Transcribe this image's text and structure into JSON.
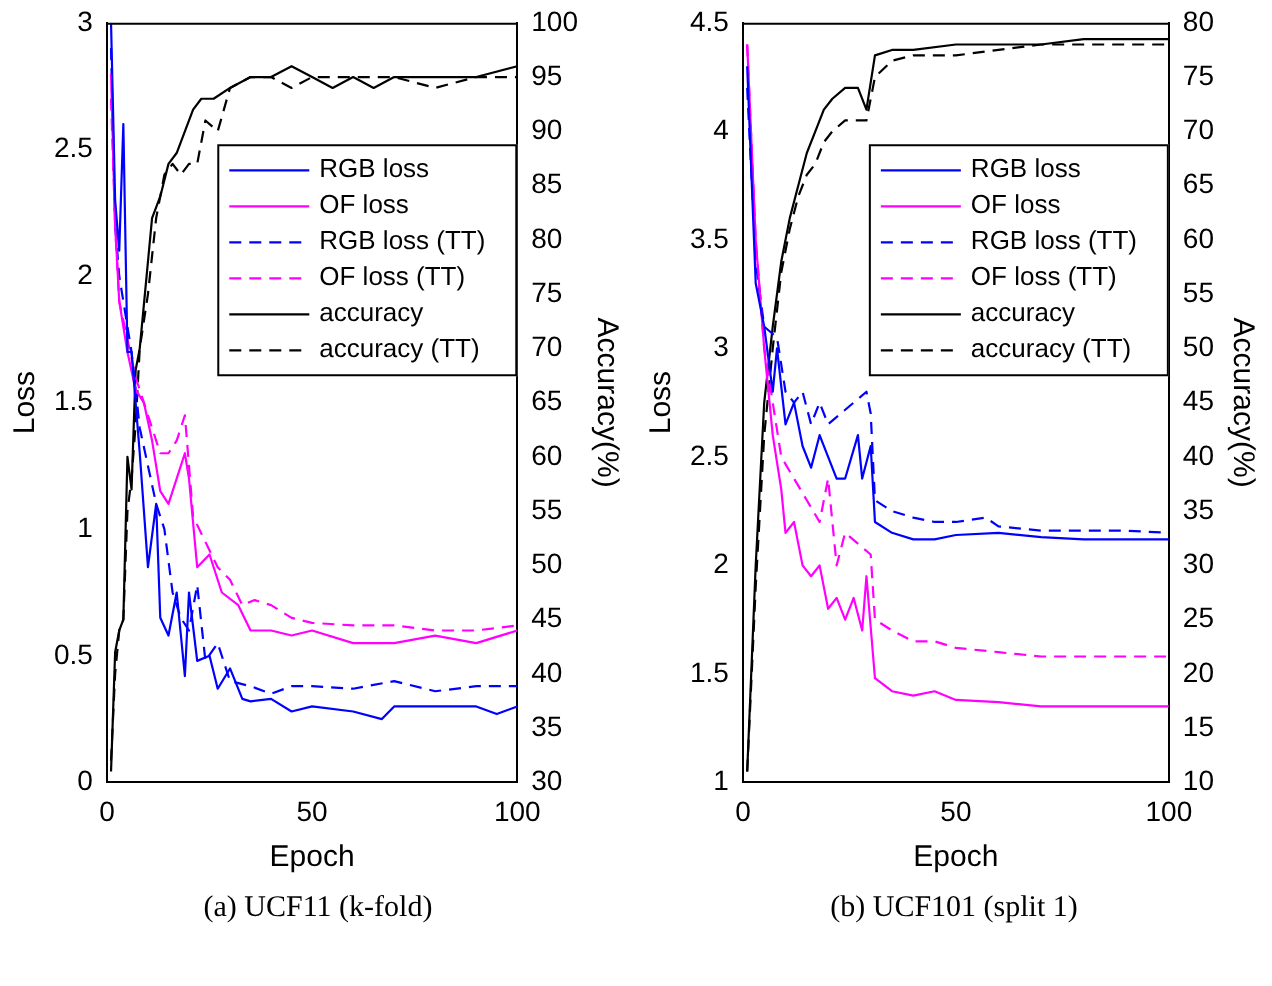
{
  "chart_data": [
    {
      "type": "line",
      "xlabel": "Epoch",
      "ylabel": "Loss",
      "y2label": "Accuracy(%)",
      "xlim": [
        0,
        100
      ],
      "xticks": [
        0,
        50,
        100
      ],
      "ylim": [
        0,
        3
      ],
      "yticks": [
        0,
        0.5,
        1,
        1.5,
        2,
        2.5,
        3
      ],
      "y2lim": [
        30,
        100
      ],
      "y2ticks": [
        30,
        35,
        40,
        45,
        50,
        55,
        60,
        65,
        70,
        75,
        80,
        85,
        90,
        95,
        100
      ],
      "grid": false,
      "legend": "right",
      "marker": "none",
      "annotations": [
        "(a)  UCF11 (k-fold)"
      ],
      "series": [
        {
          "name": "RGB loss",
          "color": "#0000ff",
          "line_style": "solid",
          "x": [
            1,
            2,
            3,
            4,
            5,
            6,
            8,
            10,
            12,
            13,
            15,
            17,
            19,
            20,
            22,
            25,
            27,
            30,
            33,
            35,
            40,
            45,
            50,
            60,
            67,
            70,
            80,
            90,
            95,
            100
          ],
          "values": [
            3.0,
            2.3,
            2.1,
            2.6,
            1.7,
            1.7,
            1.3,
            0.85,
            1.1,
            0.65,
            0.58,
            0.75,
            0.42,
            0.75,
            0.48,
            0.5,
            0.37,
            0.45,
            0.33,
            0.32,
            0.33,
            0.28,
            0.3,
            0.28,
            0.25,
            0.3,
            0.3,
            0.3,
            0.27,
            0.3
          ]
        },
        {
          "name": "OF loss",
          "color": "#ff00ff",
          "line_style": "solid",
          "x": [
            1,
            2,
            3,
            5,
            7,
            9,
            11,
            13,
            15,
            17,
            19,
            20,
            22,
            25,
            28,
            32,
            35,
            40,
            45,
            50,
            60,
            70,
            80,
            90,
            100
          ],
          "values": [
            2.8,
            2.2,
            1.9,
            1.7,
            1.55,
            1.5,
            1.35,
            1.15,
            1.1,
            1.2,
            1.3,
            1.2,
            0.85,
            0.9,
            0.75,
            0.7,
            0.6,
            0.6,
            0.58,
            0.6,
            0.55,
            0.55,
            0.58,
            0.55,
            0.6
          ]
        },
        {
          "name": "RGB loss (TT)",
          "color": "#0000ff",
          "line_style": "dashed",
          "x": [
            1,
            2,
            3,
            5,
            6,
            8,
            10,
            12,
            14,
            16,
            18,
            20,
            22,
            24,
            27,
            30,
            35,
            40,
            45,
            50,
            60,
            70,
            80,
            90,
            100
          ],
          "values": [
            2.9,
            2.2,
            2.0,
            1.8,
            1.7,
            1.4,
            1.25,
            1.1,
            1.0,
            0.75,
            0.65,
            0.6,
            0.78,
            0.48,
            0.55,
            0.4,
            0.38,
            0.35,
            0.38,
            0.38,
            0.37,
            0.4,
            0.36,
            0.38,
            0.38
          ]
        },
        {
          "name": "OF loss (TT)",
          "color": "#ff00ff",
          "line_style": "dashed",
          "x": [
            1,
            2,
            3,
            5,
            7,
            9,
            11,
            13,
            15,
            17,
            19,
            21,
            24,
            27,
            30,
            33,
            36,
            40,
            45,
            50,
            60,
            70,
            80,
            90,
            100
          ],
          "values": [
            2.7,
            2.2,
            1.9,
            1.75,
            1.6,
            1.5,
            1.4,
            1.3,
            1.3,
            1.35,
            1.45,
            1.05,
            0.95,
            0.85,
            0.8,
            0.7,
            0.72,
            0.7,
            0.65,
            0.63,
            0.62,
            0.62,
            0.6,
            0.6,
            0.62
          ]
        },
        {
          "name": "accuracy",
          "color": "#000000",
          "line_style": "solid",
          "axis": "y2",
          "x": [
            1,
            2,
            3,
            4,
            5,
            6,
            7,
            8,
            10,
            11,
            13,
            15,
            17,
            19,
            21,
            23,
            26,
            30,
            35,
            40,
            45,
            50,
            55,
            60,
            65,
            70,
            80,
            90,
            100
          ],
          "values": [
            31,
            42,
            44,
            45,
            60,
            57,
            68,
            70,
            78,
            82,
            84,
            87,
            88,
            90,
            92,
            93,
            93,
            94,
            95,
            95,
            96,
            95,
            94,
            95,
            94,
            95,
            95,
            95,
            96
          ]
        },
        {
          "name": "accuracy (TT)",
          "color": "#000000",
          "line_style": "dashed",
          "axis": "y2",
          "x": [
            1,
            2,
            3,
            4,
            5,
            6,
            7,
            8,
            10,
            12,
            14,
            16,
            18,
            20,
            22,
            24,
            27,
            30,
            35,
            40,
            45,
            50,
            60,
            70,
            80,
            90,
            100
          ],
          "values": [
            32,
            40,
            44,
            45,
            55,
            58,
            63,
            70,
            75,
            82,
            86,
            87,
            86,
            87,
            87,
            91,
            90,
            94,
            95,
            95,
            94,
            95,
            95,
            95,
            94,
            95,
            95
          ]
        }
      ]
    },
    {
      "type": "line",
      "xlabel": "Epoch",
      "ylabel": "Loss",
      "y2label": "Accuracy(%)",
      "xlim": [
        0,
        100
      ],
      "xticks": [
        0,
        50,
        100
      ],
      "ylim": [
        1,
        4.5
      ],
      "yticks": [
        1,
        1.5,
        2,
        2.5,
        3,
        3.5,
        4,
        4.5
      ],
      "y2lim": [
        10,
        80
      ],
      "y2ticks": [
        10,
        15,
        20,
        25,
        30,
        35,
        40,
        45,
        50,
        55,
        60,
        65,
        70,
        75,
        80
      ],
      "grid": false,
      "legend": "right",
      "marker": "none",
      "annotations": [
        "(b)  UCF101 (split 1)"
      ],
      "series": [
        {
          "name": "RGB loss",
          "color": "#0000ff",
          "line_style": "solid",
          "x": [
            1,
            3,
            5,
            7,
            8,
            10,
            12,
            14,
            16,
            18,
            20,
            22,
            24,
            27,
            28,
            30,
            31,
            35,
            40,
            45,
            50,
            60,
            70,
            80,
            90,
            100
          ],
          "values": [
            4.3,
            3.3,
            3.1,
            2.8,
            3.0,
            2.65,
            2.75,
            2.55,
            2.45,
            2.6,
            2.5,
            2.4,
            2.4,
            2.6,
            2.4,
            2.55,
            2.2,
            2.15,
            2.12,
            2.12,
            2.14,
            2.15,
            2.13,
            2.12,
            2.12,
            2.12
          ]
        },
        {
          "name": "OF loss",
          "color": "#ff00ff",
          "line_style": "solid",
          "x": [
            1,
            3,
            5,
            7,
            9,
            10,
            12,
            14,
            16,
            18,
            20,
            22,
            24,
            26,
            28,
            29,
            31,
            35,
            40,
            45,
            50,
            60,
            70,
            80,
            90,
            100
          ],
          "values": [
            4.4,
            3.5,
            3.0,
            2.6,
            2.35,
            2.15,
            2.2,
            2.0,
            1.95,
            2.0,
            1.8,
            1.85,
            1.75,
            1.85,
            1.7,
            1.95,
            1.48,
            1.42,
            1.4,
            1.42,
            1.38,
            1.37,
            1.35,
            1.35,
            1.35,
            1.35
          ]
        },
        {
          "name": "RGB loss (TT)",
          "color": "#0000ff",
          "line_style": "dashed",
          "x": [
            1,
            3,
            5,
            8,
            10,
            12,
            14,
            16,
            18,
            20,
            23,
            26,
            29,
            30,
            31,
            35,
            40,
            45,
            50,
            57,
            60,
            70,
            80,
            90,
            100
          ],
          "values": [
            4.2,
            3.4,
            3.1,
            3.05,
            2.8,
            2.75,
            2.8,
            2.65,
            2.75,
            2.65,
            2.7,
            2.75,
            2.8,
            2.7,
            2.3,
            2.25,
            2.22,
            2.2,
            2.2,
            2.22,
            2.18,
            2.16,
            2.16,
            2.16,
            2.15
          ]
        },
        {
          "name": "OF loss (TT)",
          "color": "#ff00ff",
          "line_style": "dashed",
          "x": [
            1,
            3,
            5,
            7,
            9,
            12,
            15,
            18,
            20,
            22,
            24,
            27,
            30,
            31,
            35,
            40,
            45,
            50,
            60,
            70,
            80,
            90,
            100
          ],
          "values": [
            4.4,
            3.5,
            3.0,
            2.75,
            2.5,
            2.4,
            2.3,
            2.2,
            2.4,
            2.0,
            2.15,
            2.1,
            2.05,
            1.75,
            1.7,
            1.65,
            1.65,
            1.62,
            1.6,
            1.58,
            1.58,
            1.58,
            1.58
          ]
        },
        {
          "name": "accuracy",
          "color": "#000000",
          "line_style": "solid",
          "axis": "y2",
          "x": [
            1,
            3,
            5,
            7,
            9,
            11,
            13,
            15,
            17,
            19,
            21,
            24,
            27,
            29,
            31,
            35,
            40,
            50,
            60,
            70,
            80,
            90,
            100
          ],
          "values": [
            11,
            30,
            45,
            52,
            58,
            62,
            65,
            68,
            70,
            72,
            73,
            74,
            74,
            72,
            77,
            77.5,
            77.5,
            78,
            78,
            78,
            78.5,
            78.5,
            78.5
          ]
        },
        {
          "name": "accuracy (TT)",
          "color": "#000000",
          "line_style": "dashed",
          "axis": "y2",
          "x": [
            1,
            3,
            5,
            7,
            9,
            11,
            13,
            15,
            17,
            19,
            21,
            24,
            27,
            29,
            31,
            35,
            40,
            50,
            60,
            70,
            80,
            90,
            100
          ],
          "values": [
            11,
            28,
            42,
            50,
            57,
            61,
            64,
            66,
            67,
            69,
            70,
            71,
            71,
            71,
            75,
            76.5,
            77,
            77,
            77.5,
            78,
            78,
            78,
            78
          ]
        }
      ]
    }
  ]
}
